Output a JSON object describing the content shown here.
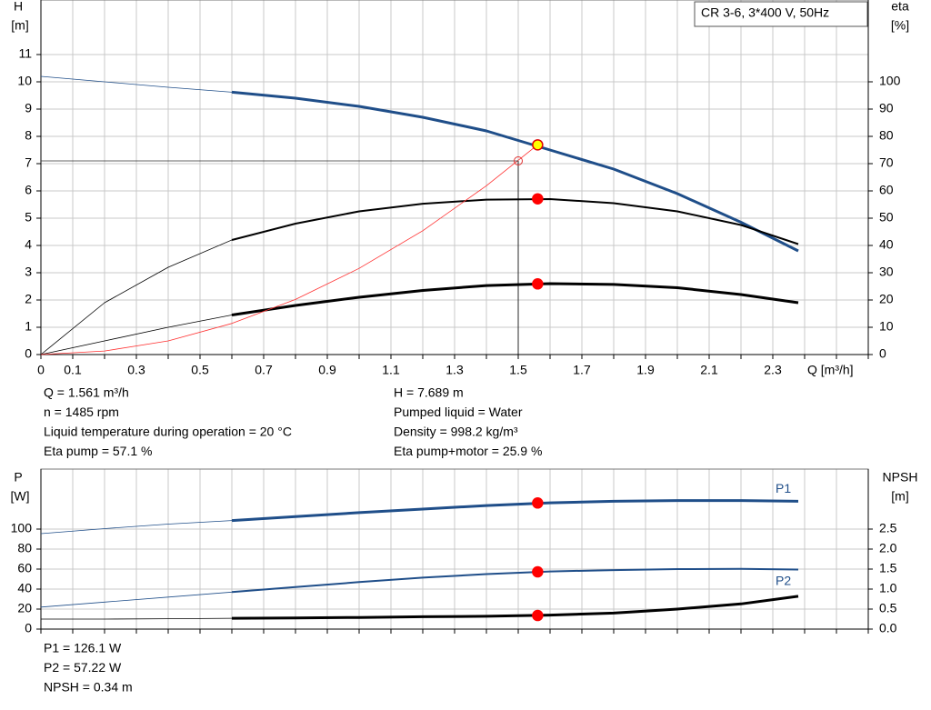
{
  "chart_data": [
    {
      "type": "line",
      "title": "CR 3-6, 3*400 V, 50Hz",
      "y_label": [
        "H",
        "[m]"
      ],
      "y2_label": [
        "eta",
        "[%]"
      ],
      "x_label": "Q [m³/h]",
      "xlim": [
        0,
        2.6
      ],
      "ylim": [
        0,
        13
      ],
      "y2lim": [
        0,
        130
      ],
      "xticks": [
        0,
        0.1,
        0.3,
        0.5,
        0.7,
        0.9,
        1.1,
        1.3,
        1.5,
        1.7,
        1.9,
        2.1,
        2.3
      ],
      "xgrid_step": 0.1,
      "yticks": [
        0,
        1,
        2,
        3,
        4,
        5,
        6,
        7,
        8,
        9,
        10,
        11
      ],
      "y2ticks": [
        0,
        10,
        20,
        30,
        40,
        50,
        60,
        70,
        80,
        90,
        100
      ],
      "grid": true,
      "operating_range": [
        0.6,
        2.38
      ],
      "series": [
        {
          "color": "#1f4e89",
          "line": "heavy",
          "x": [
            0,
            0.2,
            0.4,
            0.6,
            0.8,
            1.0,
            1.2,
            1.4,
            1.6,
            1.8,
            2.0,
            2.2,
            2.38
          ],
          "values": [
            10.2,
            10.0,
            9.8,
            9.62,
            9.4,
            9.1,
            8.7,
            8.2,
            7.5,
            6.8,
            5.9,
            4.85,
            3.8
          ]
        },
        {
          "color": "#000000",
          "line": "medium",
          "axis": "y2",
          "x": [
            0,
            0.2,
            0.4,
            0.6,
            0.8,
            1.0,
            1.2,
            1.4,
            1.6,
            1.8,
            2.0,
            2.2,
            2.38
          ],
          "values": [
            0,
            19,
            32,
            42,
            48,
            52.5,
            55.3,
            56.8,
            57,
            55.5,
            52.5,
            47.5,
            40.5
          ]
        },
        {
          "color": "#000000",
          "line": "heavy",
          "axis": "y2",
          "x": [
            0,
            0.2,
            0.4,
            0.6,
            0.8,
            1.0,
            1.2,
            1.4,
            1.6,
            1.8,
            2.0,
            2.2,
            2.38
          ],
          "values": [
            0,
            5,
            10,
            14.5,
            18,
            21,
            23.5,
            25.3,
            26,
            25.7,
            24.5,
            22,
            19
          ]
        },
        {
          "color": "#ff3030",
          "line": "thin",
          "x": [
            0,
            0.2,
            0.4,
            0.6,
            0.8,
            1.0,
            1.2,
            1.4,
            1.561
          ],
          "values": [
            0,
            0.13,
            0.5,
            1.14,
            2.02,
            3.16,
            4.54,
            6.19,
            7.689
          ]
        }
      ],
      "points": [
        {
          "x": 1.561,
          "y": 7.689,
          "fill": "#ffff00",
          "stroke": "#e00000"
        },
        {
          "x": 1.561,
          "y": 57.1,
          "fill": "#ff0000",
          "axis": "y2"
        },
        {
          "x": 1.561,
          "y": 25.9,
          "fill": "#ff0000",
          "axis": "y2"
        }
      ],
      "duty_point": {
        "x": 1.5,
        "y": 7.1,
        "color": "#e03030"
      },
      "info_left": [
        "Q = 1.561 m³/h",
        "n = 1485 rpm",
        "Liquid temperature during operation = 20 °C",
        "Eta pump = 57.1 %"
      ],
      "info_right": [
        "H = 7.689 m",
        "Pumped liquid = Water",
        "Density = 998.2 kg/m³",
        "Eta pump+motor = 25.9 %"
      ]
    },
    {
      "type": "line",
      "y_label": [
        "P",
        "[W]"
      ],
      "y2_label": [
        "NPSH",
        "[m]"
      ],
      "xlim": [
        0,
        2.6
      ],
      "ylim": [
        0,
        160
      ],
      "y2lim": [
        0,
        4
      ],
      "xgrid_step": 0.1,
      "yticks": [
        0,
        20,
        40,
        60,
        80,
        100
      ],
      "y2ticks": [
        {
          "value": 0,
          "label": "0.0"
        },
        0.5,
        {
          "value": 1,
          "label": "1.0"
        },
        1.5,
        {
          "value": 2,
          "label": "2.0"
        },
        2.5
      ],
      "grid": true,
      "operating_range": [
        0.6,
        2.38
      ],
      "series": [
        {
          "name": "P1",
          "color": "#1f4e89",
          "line": "heavy",
          "x": [
            0,
            0.2,
            0.4,
            0.6,
            0.8,
            1.0,
            1.2,
            1.4,
            1.6,
            1.8,
            2.0,
            2.2,
            2.38
          ],
          "values": [
            95.5,
            100.5,
            105,
            108.5,
            112.5,
            116.5,
            120,
            123.5,
            126.3,
            127.8,
            128.5,
            128.5,
            127.8
          ]
        },
        {
          "name": "P2",
          "color": "#1f4e89",
          "line": "medium",
          "x": [
            0,
            0.2,
            0.4,
            0.6,
            0.8,
            1.0,
            1.2,
            1.4,
            1.6,
            1.8,
            2.0,
            2.2,
            2.38
          ],
          "values": [
            22,
            27,
            32,
            37,
            42,
            47,
            51.5,
            55,
            57.6,
            59,
            60,
            60.2,
            59.5
          ]
        },
        {
          "color": "#000000",
          "line": "heavy",
          "axis": "y2",
          "x": [
            0,
            0.2,
            0.4,
            0.6,
            0.8,
            1.0,
            1.2,
            1.4,
            1.6,
            1.8,
            2.0,
            2.2,
            2.38
          ],
          "values": [
            0.25,
            0.25,
            0.26,
            0.27,
            0.28,
            0.29,
            0.31,
            0.32,
            0.35,
            0.4,
            0.5,
            0.63,
            0.82
          ]
        }
      ],
      "points": [
        {
          "x": 1.561,
          "y": 126.1,
          "fill": "#ff0000"
        },
        {
          "x": 1.561,
          "y": 57.22,
          "fill": "#ff0000"
        },
        {
          "x": 1.561,
          "y": 0.34,
          "fill": "#ff0000",
          "axis": "y2"
        }
      ],
      "info_left": [
        "P1 = 126.1 W",
        "P2 = 57.22 W",
        "NPSH = 0.34 m"
      ]
    }
  ]
}
